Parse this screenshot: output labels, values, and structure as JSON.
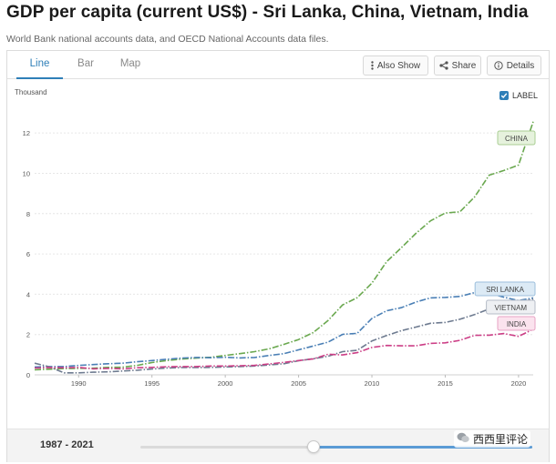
{
  "page": {
    "title": "GDP per capita (current US$) - Sri Lanka, China, Vietnam, India",
    "subtitle": "World Bank national accounts data, and OECD National Accounts data files."
  },
  "tabs": [
    {
      "label": "Line",
      "active": true
    },
    {
      "label": "Bar",
      "active": false
    },
    {
      "label": "Map",
      "active": false
    }
  ],
  "toolbar": {
    "also_show": "Also Show",
    "share": "Share",
    "details": "Details"
  },
  "label_toggle": {
    "label": "LABEL",
    "checked": true
  },
  "range": {
    "label": "1987 - 2021",
    "from": 1987,
    "to": 2021
  },
  "watermark": {
    "text": "西西里评论"
  },
  "colors": {
    "accent": "#2f7fb8",
    "china": "#6aa84f",
    "sri_lanka": "#4a7fb5",
    "vietnam": "#6e7b90",
    "india": "#cc3e86"
  },
  "chart_data": {
    "type": "line",
    "title": "GDP per capita (current US$) - Sri Lanka, China, Vietnam, India",
    "ylabel": "Thousand",
    "xlabel": "",
    "xlim": [
      1987,
      2021
    ],
    "ylim": [
      0,
      13
    ],
    "yticks": [
      0,
      2,
      4,
      6,
      8,
      10,
      12
    ],
    "xticks": [
      1990,
      1995,
      2000,
      2005,
      2010,
      2015,
      2020
    ],
    "grid": true,
    "x": [
      1987,
      1988,
      1989,
      1990,
      1991,
      1992,
      1993,
      1994,
      1995,
      1996,
      1997,
      1998,
      1999,
      2000,
      2001,
      2002,
      2003,
      2004,
      2005,
      2006,
      2007,
      2008,
      2009,
      2010,
      2011,
      2012,
      2013,
      2014,
      2015,
      2016,
      2017,
      2018,
      2019,
      2020,
      2021
    ],
    "series": [
      {
        "name": "China",
        "label": "CHINA",
        "color": "#6aa84f",
        "values": [
          0.25,
          0.28,
          0.31,
          0.32,
          0.33,
          0.37,
          0.38,
          0.47,
          0.61,
          0.71,
          0.78,
          0.83,
          0.87,
          0.96,
          1.05,
          1.15,
          1.29,
          1.51,
          1.75,
          2.1,
          2.69,
          3.47,
          3.83,
          4.55,
          5.61,
          6.3,
          7.02,
          7.64,
          8.03,
          8.09,
          8.82,
          9.91,
          10.14,
          10.41,
          12.56
        ]
      },
      {
        "name": "Sri Lanka",
        "label": "SRI LANKA",
        "color": "#4a7fb5",
        "values": [
          0.39,
          0.41,
          0.41,
          0.47,
          0.51,
          0.55,
          0.58,
          0.65,
          0.71,
          0.77,
          0.83,
          0.86,
          0.85,
          0.87,
          0.84,
          0.86,
          0.96,
          1.05,
          1.24,
          1.43,
          1.62,
          2.01,
          2.06,
          2.8,
          3.18,
          3.33,
          3.61,
          3.82,
          3.84,
          3.89,
          4.08,
          4.06,
          3.85,
          3.69,
          3.82
        ]
      },
      {
        "name": "Vietnam",
        "label": "VIETNAM",
        "color": "#6e7b90",
        "values": [
          0.58,
          0.4,
          0.1,
          0.1,
          0.13,
          0.15,
          0.19,
          0.23,
          0.29,
          0.34,
          0.36,
          0.36,
          0.37,
          0.39,
          0.41,
          0.44,
          0.49,
          0.55,
          0.7,
          0.8,
          0.92,
          1.15,
          1.22,
          1.68,
          1.95,
          2.19,
          2.37,
          2.56,
          2.6,
          2.76,
          2.99,
          3.27,
          3.49,
          3.59,
          3.76
        ]
      },
      {
        "name": "India",
        "label": "INDIA",
        "color": "#cc3e86",
        "values": [
          0.34,
          0.36,
          0.35,
          0.37,
          0.3,
          0.32,
          0.3,
          0.35,
          0.37,
          0.4,
          0.41,
          0.41,
          0.44,
          0.44,
          0.45,
          0.47,
          0.54,
          0.62,
          0.71,
          0.79,
          1.02,
          0.99,
          1.1,
          1.36,
          1.46,
          1.44,
          1.44,
          1.56,
          1.59,
          1.71,
          1.96,
          1.97,
          2.05,
          1.91,
          2.26
        ]
      }
    ]
  }
}
